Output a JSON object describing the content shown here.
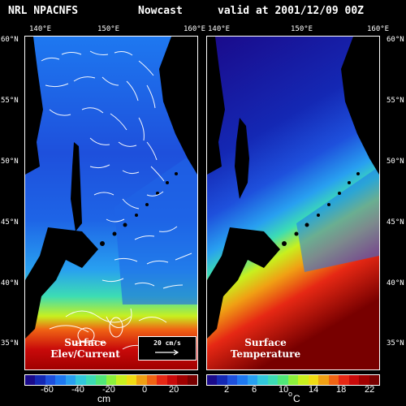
{
  "header": {
    "model": "NRL NPACNFS",
    "product": "Nowcast",
    "valid": "valid at 2001/12/09 00Z"
  },
  "axes": {
    "top_lon_labels": [
      "140°E",
      "150°E",
      "160°E"
    ],
    "lat_labels": [
      "60°N",
      "55°N",
      "50°N",
      "45°N",
      "40°N",
      "35°N"
    ]
  },
  "panels": {
    "left": {
      "label_line1": "Surface",
      "label_line2": "Elev/Current",
      "reference_vector": "20 cm/s",
      "colorbar_ticks": [
        "-60",
        "-40",
        "-20",
        "0",
        "20"
      ],
      "unit": "cm"
    },
    "right": {
      "label_line1": "Surface",
      "label_line2": "Temperature",
      "colorbar_ticks": [
        "2",
        "6",
        "10",
        "14",
        "18",
        "22"
      ],
      "unit_main": "°C",
      "unit_sup": "o",
      "unit_letter": "C"
    }
  },
  "colors": {
    "land": "#000000",
    "scale": [
      "#1a0a8a",
      "#1428b4",
      "#1e50dc",
      "#1e78f0",
      "#28a0f0",
      "#32c8dc",
      "#3cdcb4",
      "#50e678",
      "#8cf03c",
      "#c8f01e",
      "#f0dc14",
      "#f0a014",
      "#f06414",
      "#e62814",
      "#c80a0a",
      "#a00000",
      "#780000"
    ]
  }
}
